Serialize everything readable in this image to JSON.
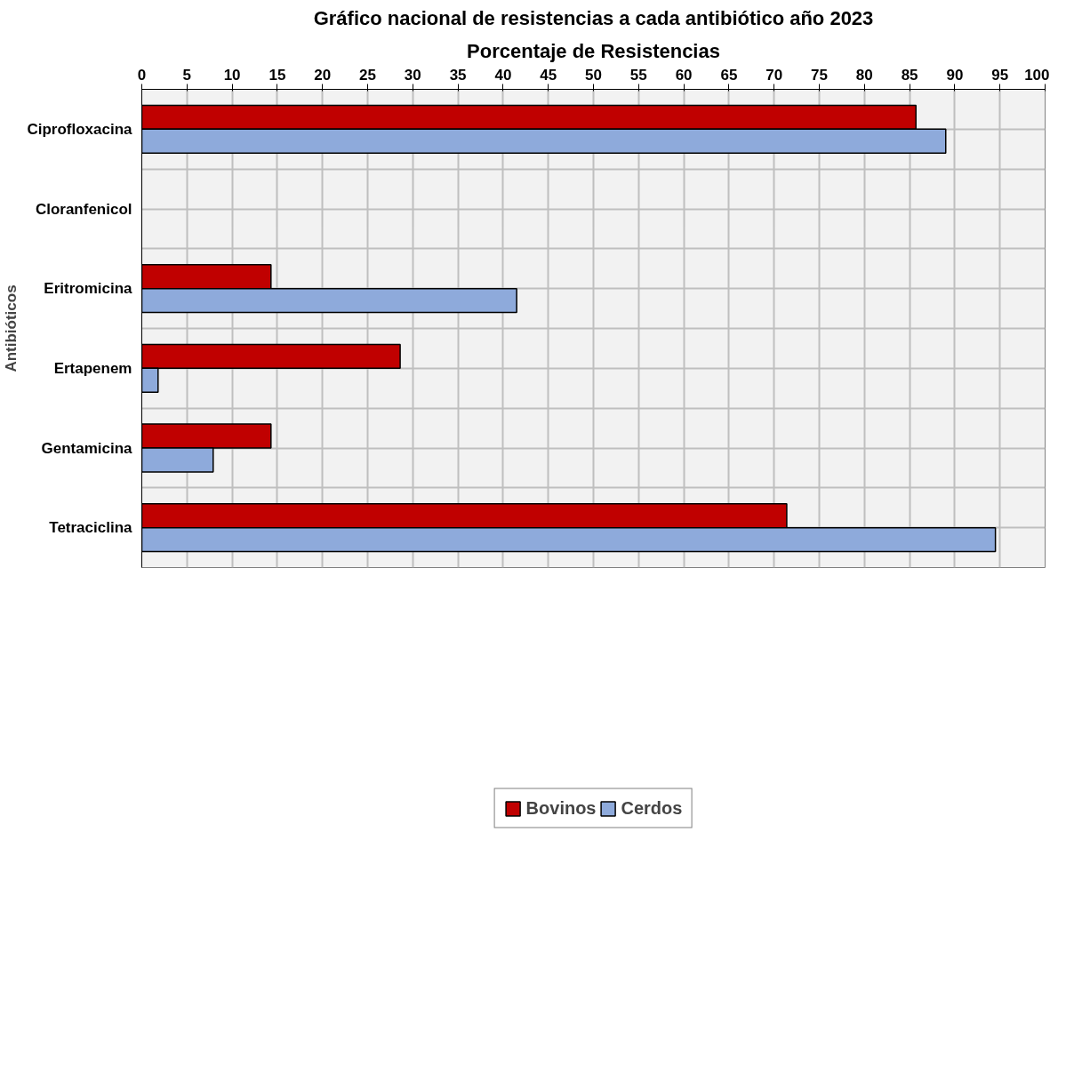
{
  "chart_data": {
    "type": "bar",
    "orientation": "horizontal",
    "title": "Gráfico nacional de resistencias a cada antibiótico año 2023",
    "subtitle": "Porcentaje de Resistencias",
    "ylabel": "Antibióticos",
    "categories": [
      "Ciprofloxacina",
      "Cloranfenicol",
      "Eritromicina",
      "Ertapenem",
      "Gentamicina",
      "Tetraciclina"
    ],
    "series": [
      {
        "name": "Bovinos",
        "color": "#c00000",
        "values": [
          85.7,
          0,
          14.3,
          28.6,
          14.3,
          71.4
        ]
      },
      {
        "name": "Cerdos",
        "color": "#8eaadb",
        "values": [
          89.0,
          0,
          41.5,
          1.8,
          7.9,
          94.5
        ]
      }
    ],
    "xlim": [
      0,
      100
    ],
    "xticks": [
      0,
      5,
      10,
      15,
      20,
      25,
      30,
      35,
      40,
      45,
      50,
      55,
      60,
      65,
      70,
      75,
      80,
      85,
      90,
      95,
      100
    ],
    "grid": true,
    "legend": "bottom"
  }
}
